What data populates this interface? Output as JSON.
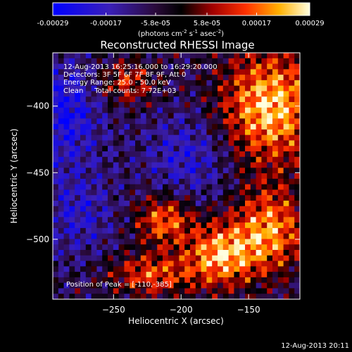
{
  "chart_data": {
    "type": "heatmap",
    "title": "Reconstructed RHESSI Image",
    "xlabel": "Heliocentric X (arcsec)",
    "ylabel": "Heliocentric Y (arcsec)",
    "xlim": [
      -295,
      -112
    ],
    "ylim": [
      -545,
      -360
    ],
    "x_ticks": [
      -250,
      -200,
      -150
    ],
    "y_ticks": [
      -400,
      -450,
      -500
    ],
    "colorbar": {
      "range": [
        -0.00029,
        0.00029
      ],
      "ticks": [
        -0.00029,
        -0.00017,
        -5.8e-05,
        5.8e-05,
        0.00017,
        0.00029
      ],
      "tick_labels": [
        "-0.00029",
        "-0.00017",
        "-5.8e-05",
        "5.8e-05",
        "0.00017",
        "0.00029"
      ],
      "unit_label": "(photons cm",
      "unit_label_exp1": "-2",
      "unit_label_mid": " s",
      "unit_label_exp2": "-1",
      "unit_label_tail": " asec",
      "unit_label_exp3": "-2",
      "unit_label_close": ")"
    },
    "colormap": [
      "#0000ff",
      "#5a2fb0",
      "#2a0a3a",
      "#000000",
      "#a00000",
      "#ff3000",
      "#ffb000",
      "#ffffe0"
    ],
    "annotations": [
      "12-Aug-2013 16:25:16.000 to 16:29:20.000",
      "Detectors: 3F 5F 6F 7F 8F 9F, Att 0",
      "Energy Range: 25.0 - 50.0 keV",
      "Clean     Total counts: 7.72E+03"
    ],
    "peak_label": "Position of Peak = [-110,-385]",
    "peak": [
      -110,
      -385
    ]
  },
  "footer": {
    "timestamp": "12-Aug-2013 20:11"
  }
}
